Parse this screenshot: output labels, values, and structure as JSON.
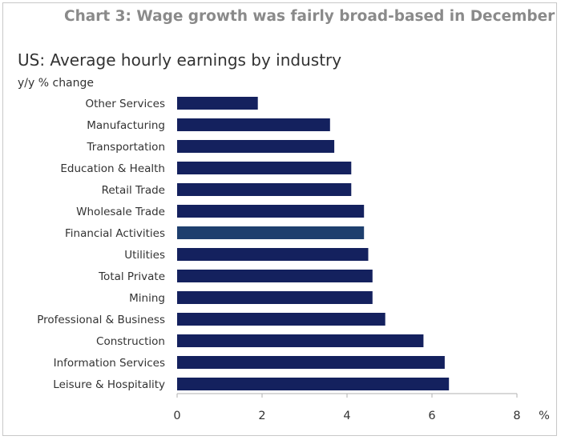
{
  "figure_title": "Chart 3: Wage growth was fairly broad-based in December",
  "colors": {
    "bar": "#14215e",
    "bar_highlight": "#1e3f6e",
    "axis": "#b0b0b0",
    "text": "#333333",
    "figure_title": "#8a8a8a"
  },
  "chart_data": {
    "type": "bar",
    "orientation": "horizontal",
    "title": "US: Average hourly earnings by industry",
    "ylabel": "y/y % change",
    "xlabel": "%",
    "xlim": [
      0,
      8
    ],
    "xticks": [
      0,
      2,
      4,
      6,
      8
    ],
    "grid": false,
    "categories": [
      "Other Services",
      "Manufacturing",
      "Transportation",
      "Education & Health",
      "Retail Trade",
      "Wholesale Trade",
      "Financial Activities",
      "Utilities",
      "Total Private",
      "Mining",
      "Professional & Business",
      "Construction",
      "Information Services",
      "Leisure & Hospitality"
    ],
    "values": [
      1.9,
      3.6,
      3.7,
      4.1,
      4.1,
      4.4,
      4.4,
      4.5,
      4.6,
      4.6,
      4.9,
      5.8,
      6.3,
      6.4
    ],
    "highlight_index": 6
  }
}
